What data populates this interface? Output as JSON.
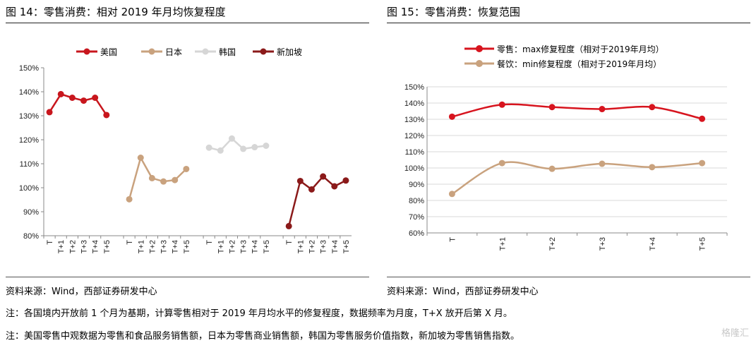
{
  "figures": {
    "left_title": "图 14：零售消费：相对 2019 年月均恢复程度",
    "right_title": "图 15：零售消费：恢复范围",
    "left_source": "资料来源：Wind，西部证券研发中心",
    "right_source": "资料来源：Wind，西部证券研发中心"
  },
  "notes": [
    "注：各国境内开放前 1 个月为基期，计算零售相对于 2019 年月均水平的修复程度，数据频率为月度，T+X 放开后第 X 月。",
    "注：美国零售中观数据为零售和食品服务销售额，日本为零售商业销售额，韩国为零售服务价值指数，新加坡为零售销售指数。"
  ],
  "watermark": "格隆汇",
  "chart_data": [
    {
      "type": "line",
      "title": "",
      "ylim": [
        80,
        150
      ],
      "yticks": [
        "80%",
        "90%",
        "100%",
        "110%",
        "120%",
        "130%",
        "140%",
        "150%"
      ],
      "categories": [
        "T",
        "T+1",
        "T+2",
        "T+3",
        "T+4",
        "T+5"
      ],
      "legend_position": "top",
      "grid": false,
      "series": [
        {
          "name": "美国",
          "color": "#c8161d",
          "values": [
            131.5,
            139,
            137.5,
            136.3,
            137.5,
            130.3
          ]
        },
        {
          "name": "日本",
          "color": "#c9a27e",
          "values": [
            95.2,
            112.5,
            104,
            102.6,
            103.2,
            107.8
          ]
        },
        {
          "name": "韩国",
          "color": "#d6d6d6",
          "values": [
            116.7,
            115.5,
            120.5,
            116.2,
            116.9,
            117.5
          ]
        },
        {
          "name": "新加坡",
          "color": "#8b1a1a",
          "values": [
            84,
            102.8,
            99.3,
            104.7,
            100.6,
            103
          ]
        }
      ]
    },
    {
      "type": "line",
      "title": "",
      "ylim": [
        60,
        150
      ],
      "yticks": [
        "60%",
        "70%",
        "80%",
        "90%",
        "100%",
        "110%",
        "120%",
        "130%",
        "140%",
        "150%"
      ],
      "categories": [
        "T",
        "T+1",
        "T+2",
        "T+3",
        "T+4",
        "T+5"
      ],
      "legend_position": "top",
      "grid": true,
      "series": [
        {
          "name": "零售：max修复程度（相对于2019年月均）",
          "color": "#d7141e",
          "values": [
            131.6,
            139,
            137.5,
            136.3,
            137.5,
            130.3
          ]
        },
        {
          "name": "餐饮：min修复程度（相对于2019年月均）",
          "color": "#c9a27e",
          "values": [
            84,
            103,
            99.5,
            102.6,
            100.5,
            103
          ]
        }
      ]
    }
  ]
}
